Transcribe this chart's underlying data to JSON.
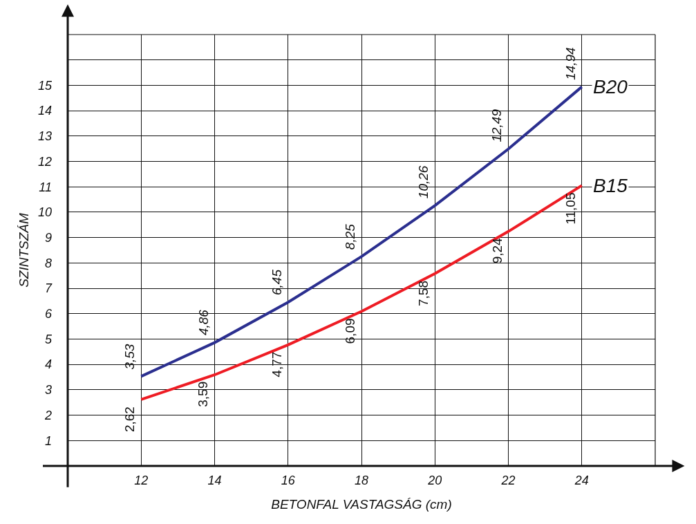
{
  "chart_data": {
    "type": "line",
    "xlabel": "BETONFAL VASTAGSÁG (cm)",
    "ylabel": "SZINTSZÁM",
    "x": [
      12,
      14,
      16,
      18,
      20,
      22,
      24
    ],
    "series": [
      {
        "name": "B20",
        "color": "#2b2f8f",
        "values": [
          3.53,
          4.86,
          6.45,
          8.25,
          10.26,
          12.49,
          14.94
        ],
        "value_labels": [
          "3,53",
          "4,86",
          "6,45",
          "8,25",
          "10,26",
          "12,49",
          "14,94"
        ]
      },
      {
        "name": "B15",
        "color": "#ee1c24",
        "values": [
          2.62,
          3.59,
          4.77,
          6.09,
          7.58,
          9.24,
          11.05
        ],
        "value_labels": [
          "2,62",
          "3,59",
          "4,77",
          "6,09",
          "7,58",
          "9,24",
          "11,05"
        ]
      }
    ],
    "xlim": [
      10,
      26
    ],
    "xticks": [
      12,
      14,
      16,
      18,
      20,
      22,
      24,
      {
        "value": 26,
        "label": null
      }
    ],
    "ylim": [
      0,
      17
    ],
    "yticks": [
      1,
      2,
      3,
      4,
      5,
      6,
      7,
      8,
      9,
      10,
      11,
      12,
      13,
      14,
      15,
      {
        "value": 16,
        "label": null
      },
      {
        "value": 17,
        "label": null
      }
    ],
    "grid": true,
    "legend": false,
    "marker": "none",
    "line_style": "solid"
  }
}
